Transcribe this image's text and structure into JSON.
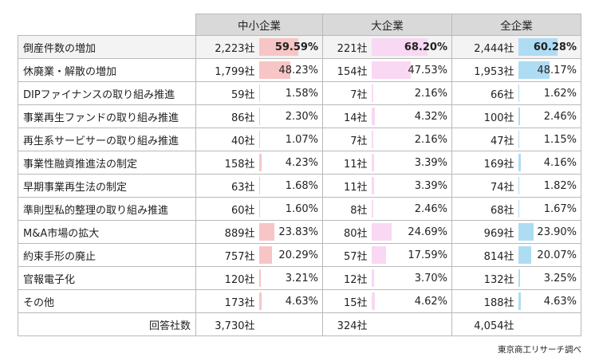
{
  "chart_data": {
    "type": "table",
    "groups": [
      "中小企業",
      "大企業",
      "全企業"
    ],
    "group_colors": [
      "#f7c5c5",
      "#f8d8f2",
      "#aedcf3"
    ],
    "rows": [
      {
        "label": "倒産件数の増加",
        "cells": [
          {
            "count": "2,223社",
            "pct": "59.59%",
            "value": 59.59
          },
          {
            "count": "221社",
            "pct": "68.20%",
            "value": 68.2
          },
          {
            "count": "2,444社",
            "pct": "60.28%",
            "value": 60.28
          }
        ]
      },
      {
        "label": "休廃業・解散の増加",
        "cells": [
          {
            "count": "1,799社",
            "pct": "48.23%",
            "value": 48.23
          },
          {
            "count": "154社",
            "pct": "47.53%",
            "value": 47.53
          },
          {
            "count": "1,953社",
            "pct": "48.17%",
            "value": 48.17
          }
        ]
      },
      {
        "label": "DIPファイナンスの取り組み推進",
        "cells": [
          {
            "count": "59社",
            "pct": "1.58%",
            "value": 1.58
          },
          {
            "count": "7社",
            "pct": "2.16%",
            "value": 2.16
          },
          {
            "count": "66社",
            "pct": "1.62%",
            "value": 1.62
          }
        ]
      },
      {
        "label": "事業再生ファンドの取り組み推進",
        "cells": [
          {
            "count": "86社",
            "pct": "2.30%",
            "value": 2.3
          },
          {
            "count": "14社",
            "pct": "4.32%",
            "value": 4.32
          },
          {
            "count": "100社",
            "pct": "2.46%",
            "value": 2.46
          }
        ]
      },
      {
        "label": "再生系サービサーの取り組み推進",
        "cells": [
          {
            "count": "40社",
            "pct": "1.07%",
            "value": 1.07
          },
          {
            "count": "7社",
            "pct": "2.16%",
            "value": 2.16
          },
          {
            "count": "47社",
            "pct": "1.15%",
            "value": 1.15
          }
        ]
      },
      {
        "label": "事業性融資推進法の制定",
        "cells": [
          {
            "count": "158社",
            "pct": "4.23%",
            "value": 4.23
          },
          {
            "count": "11社",
            "pct": "3.39%",
            "value": 3.39
          },
          {
            "count": "169社",
            "pct": "4.16%",
            "value": 4.16
          }
        ]
      },
      {
        "label": "早期事業再生法の制定",
        "cells": [
          {
            "count": "63社",
            "pct": "1.68%",
            "value": 1.68
          },
          {
            "count": "11社",
            "pct": "3.39%",
            "value": 3.39
          },
          {
            "count": "74社",
            "pct": "1.82%",
            "value": 1.82
          }
        ]
      },
      {
        "label": "準則型私的整理の取り組み推進",
        "cells": [
          {
            "count": "60社",
            "pct": "1.60%",
            "value": 1.6
          },
          {
            "count": "8社",
            "pct": "2.46%",
            "value": 2.46
          },
          {
            "count": "68社",
            "pct": "1.67%",
            "value": 1.67
          }
        ]
      },
      {
        "label": "M&A市場の拡大",
        "cells": [
          {
            "count": "889社",
            "pct": "23.83%",
            "value": 23.83
          },
          {
            "count": "80社",
            "pct": "24.69%",
            "value": 24.69
          },
          {
            "count": "969社",
            "pct": "23.90%",
            "value": 23.9
          }
        ]
      },
      {
        "label": "約束手形の廃止",
        "cells": [
          {
            "count": "757社",
            "pct": "20.29%",
            "value": 20.29
          },
          {
            "count": "57社",
            "pct": "17.59%",
            "value": 17.59
          },
          {
            "count": "814社",
            "pct": "20.07%",
            "value": 20.07
          }
        ]
      },
      {
        "label": "官報電子化",
        "cells": [
          {
            "count": "120社",
            "pct": "3.21%",
            "value": 3.21
          },
          {
            "count": "12社",
            "pct": "3.70%",
            "value": 3.7
          },
          {
            "count": "132社",
            "pct": "3.25%",
            "value": 3.25
          }
        ]
      },
      {
        "label": "その他",
        "cells": [
          {
            "count": "173社",
            "pct": "4.63%",
            "value": 4.63
          },
          {
            "count": "15社",
            "pct": "4.62%",
            "value": 4.62
          },
          {
            "count": "188社",
            "pct": "4.63%",
            "value": 4.63
          }
        ]
      }
    ],
    "total": {
      "label": "回答社数",
      "counts": [
        "3,730社",
        "324社",
        "4,054社"
      ]
    },
    "value_max": 100
  },
  "source": "東京商工リサーチ調べ"
}
